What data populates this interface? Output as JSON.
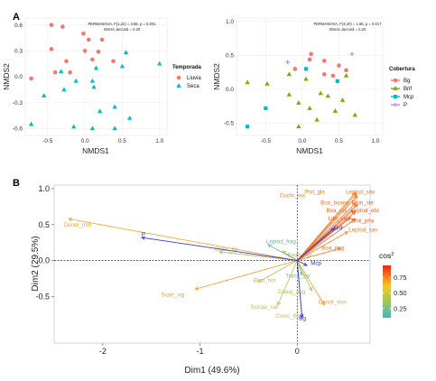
{
  "panel_labels": [
    "A",
    "B"
  ],
  "chart_data": [
    {
      "type": "scatter",
      "panel": "A",
      "xlabel": "NMDS1",
      "ylabel": "NMDS2",
      "xlim": [
        -0.8,
        1.1
      ],
      "ylim": [
        -0.68,
        0.68
      ],
      "xticks": [
        -0.5,
        0.0,
        0.5,
        1.0
      ],
      "xtick_labels": [
        "-0.5",
        "0.0",
        "0.5",
        "1.0"
      ],
      "yticks": [
        -0.6,
        -0.3,
        0.0,
        0.3,
        0.6
      ],
      "ytick_labels": [
        "-0.6",
        "-0.3",
        "0.0",
        "0.3",
        "0.6"
      ],
      "annotation_lines": [
        "PERMANOVA, F(1,22) = 3.59, p = 0.001",
        "Stress Jaccard = 0.20"
      ],
      "legend": {
        "title": "Temporada",
        "placement": "right"
      },
      "series": [
        {
          "name": "Lluvia",
          "color": "#f8766d",
          "marker": "circle",
          "points": [
            [
              -0.45,
              0.6
            ],
            [
              -0.3,
              0.58
            ],
            [
              -0.02,
              0.5
            ],
            [
              0.05,
              0.43
            ],
            [
              0.23,
              0.43
            ],
            [
              -0.45,
              0.32
            ],
            [
              0.0,
              0.3
            ],
            [
              0.18,
              0.29
            ],
            [
              0.1,
              0.2
            ],
            [
              -0.25,
              0.18
            ],
            [
              0.38,
              0.18
            ],
            [
              -0.4,
              0.05
            ],
            [
              -0.2,
              0.05
            ],
            [
              -0.72,
              -0.02
            ]
          ]
        },
        {
          "name": "Seca",
          "color": "#00bfc4",
          "marker": "triangle",
          "points": [
            [
              0.55,
              0.28
            ],
            [
              1.0,
              0.15
            ],
            [
              0.5,
              0.12
            ],
            [
              0.15,
              0.1
            ],
            [
              -0.32,
              0.06
            ],
            [
              -0.12,
              -0.05
            ],
            [
              0.1,
              -0.05
            ],
            [
              -0.28,
              -0.15
            ],
            [
              0.12,
              -0.12
            ],
            [
              -0.55,
              -0.22
            ],
            [
              0.4,
              -0.35
            ],
            [
              0.2,
              -0.4
            ],
            [
              0.6,
              -0.48
            ],
            [
              -0.72,
              -0.55
            ],
            [
              -0.15,
              -0.58
            ],
            [
              0.1,
              -0.6
            ],
            [
              0.4,
              -0.6
            ]
          ]
        }
      ]
    },
    {
      "type": "scatter",
      "panel": "A",
      "xlabel": "NMDS1",
      "ylabel": "NMDS2",
      "xlim": [
        -0.9,
        1.1
      ],
      "ylim": [
        -0.68,
        1.05
      ],
      "xticks": [
        -0.5,
        0.0,
        0.5,
        1.0
      ],
      "xtick_labels": [
        "-0.5",
        "0.0",
        "0.5",
        "1.0"
      ],
      "yticks": [
        -0.5,
        0.0,
        0.5,
        1.0
      ],
      "ytick_labels": [
        "-0.5",
        "0.0",
        "0.5",
        "1.0"
      ],
      "annotation_lines": [
        "PERMANOVA, F(3,20) = 1.66, p = 0.017",
        "Stress Jaccard = 0.20"
      ],
      "legend": {
        "title": "Cobertura",
        "placement": "right"
      },
      "series": [
        {
          "name": "Bg",
          "color": "#f8766d",
          "marker": "circle",
          "points": [
            [
              0.12,
              0.52
            ],
            [
              0.1,
              0.44
            ],
            [
              0.3,
              0.42
            ],
            [
              0.5,
              0.35
            ],
            [
              -0.1,
              0.3
            ],
            [
              0.6,
              0.28
            ],
            [
              0.3,
              0.22
            ],
            [
              0.42,
              0.2
            ]
          ]
        },
        {
          "name": "Brif",
          "color": "#7cae00",
          "marker": "triangle",
          "points": [
            [
              -0.75,
              0.1
            ],
            [
              -0.48,
              0.08
            ],
            [
              0.05,
              0.15
            ],
            [
              -0.18,
              0.22
            ],
            [
              0.6,
              0.2
            ],
            [
              0.25,
              -0.06
            ],
            [
              -0.18,
              -0.08
            ],
            [
              0.35,
              -0.1
            ],
            [
              0.55,
              -0.16
            ],
            [
              -0.05,
              -0.2
            ],
            [
              0.1,
              -0.28
            ],
            [
              0.45,
              -0.32
            ],
            [
              0.72,
              -0.38
            ],
            [
              0.2,
              -0.45
            ],
            [
              -0.05,
              -0.55
            ]
          ]
        },
        {
          "name": "Mcp",
          "color": "#00bfc4",
          "marker": "square",
          "points": [
            [
              0.05,
              0.3
            ],
            [
              0.48,
              0.12
            ],
            [
              -0.5,
              -0.28
            ],
            [
              -0.75,
              -0.55
            ]
          ]
        },
        {
          "name": "P",
          "color": "#c77cff",
          "marker": "cross",
          "points": [
            [
              -0.2,
              0.4
            ],
            [
              0.68,
              0.52
            ]
          ]
        }
      ]
    },
    {
      "type": "scatter",
      "subtype": "pca_biplot",
      "panel": "B",
      "xlabel": "Dim1 (49.6%)",
      "ylabel": "Dim2 (29.5%)",
      "xlim": [
        -2.5,
        0.75
      ],
      "ylim": [
        -1.15,
        1.05
      ],
      "xticks": [
        -2,
        -1,
        0
      ],
      "xtick_labels": [
        "-2",
        "-1",
        "0"
      ],
      "yticks": [
        -0.5,
        0.0,
        0.5,
        1.0
      ],
      "ytick_labels": [
        "-0.5",
        "0.0",
        "0.5",
        "1.0"
      ],
      "legend": {
        "title": "cos",
        "title_superscript": "2",
        "placement": "right",
        "ticks": [
          0.75,
          0.5,
          0.25
        ],
        "tick_labels": [
          "0.75",
          "0.50",
          "0.25"
        ],
        "range": [
          0.1,
          0.95
        ]
      },
      "variables": [
        {
          "name": "Cochr_ros",
          "x": 0.6,
          "y": 0.95,
          "cos2": 0.78,
          "label_xy": [
            -0.18,
            0.88
          ]
        },
        {
          "name": "Psit_gla",
          "x": 0.61,
          "y": 0.93,
          "cos2": 0.8,
          "label_xy": [
            0.08,
            0.93
          ]
        },
        {
          "name": "Leptod_sav",
          "x": 0.62,
          "y": 0.9,
          "cos2": 0.81,
          "label_xy": [
            0.5,
            0.93
          ]
        },
        {
          "name": "Boa_boans",
          "x": 0.6,
          "y": 0.8,
          "cos2": 0.82,
          "label_xy": [
            0.24,
            0.78
          ]
        },
        {
          "name": "Rhin_ste",
          "x": 0.62,
          "y": 0.78,
          "cos2": 0.84,
          "label_xy": [
            0.56,
            0.78
          ]
        },
        {
          "name": "Boa_ros",
          "x": 0.58,
          "y": 0.7,
          "cos2": 0.83,
          "label_xy": [
            0.3,
            0.67
          ]
        },
        {
          "name": "Leptod_ebr",
          "x": 0.6,
          "y": 0.68,
          "cos2": 0.85,
          "label_xy": [
            0.55,
            0.67
          ]
        },
        {
          "name": "Lith_vai",
          "x": 0.55,
          "y": 0.6,
          "cos2": 0.86,
          "label_xy": [
            0.32,
            0.56
          ]
        },
        {
          "name": "Smil_pha",
          "x": 0.6,
          "y": 0.58,
          "cos2": 0.85,
          "label_xy": [
            0.55,
            0.53
          ]
        },
        {
          "name": "Leptod_sav",
          "x": 0.52,
          "y": 0.4,
          "cos2": 0.8,
          "label_xy": [
            0.53,
            0.4
          ]
        },
        {
          "name": "Boa_pug",
          "x": 0.45,
          "y": 0.17,
          "cos2": 0.82,
          "label_xy": [
            0.25,
            0.15
          ]
        },
        {
          "name": "Dendr_min",
          "x": -2.35,
          "y": 0.58,
          "cos2": 0.7,
          "label_xy": [
            -2.4,
            0.47
          ]
        },
        {
          "name": "Scart_vig",
          "x": -1.05,
          "y": -0.4,
          "cos2": 0.72,
          "label_xy": [
            -1.4,
            -0.5
          ]
        },
        {
          "name": "Dendr_trun",
          "x": 0.28,
          "y": -0.62,
          "cos2": 0.72,
          "label_xy": [
            0.22,
            -0.6
          ]
        },
        {
          "name": "Leptod_frag",
          "x": -0.3,
          "y": 0.22,
          "cos2": 0.2,
          "label_xy": [
            -0.32,
            0.24
          ]
        },
        {
          "name": "Coloc_lip",
          "x": -0.8,
          "y": 0.12,
          "cos2": 0.46,
          "label_xy": [
            -0.85,
            0.13
          ]
        },
        {
          "name": "Eryth_hos",
          "x": -0.15,
          "y": 0.13,
          "cos2": 0.4,
          "label_xy": [
            -0.1,
            0.05
          ]
        },
        {
          "name": "Blen_hor",
          "x": -0.4,
          "y": -0.3,
          "cos2": 0.5,
          "label_xy": [
            -0.45,
            -0.3
          ]
        },
        {
          "name": "Trach_typ",
          "x": 0.05,
          "y": -0.2,
          "cos2": 0.28,
          "label_xy": [
            -0.12,
            -0.24
          ]
        },
        {
          "name": "Craug_aug",
          "x": 0.15,
          "y": -0.42,
          "cos2": 0.5,
          "label_xy": [
            -0.2,
            -0.46
          ]
        },
        {
          "name": "Scinax_rub",
          "x": -0.2,
          "y": -0.62,
          "cos2": 0.5,
          "label_xy": [
            -0.48,
            -0.67
          ]
        },
        {
          "name": "Coloc_Bg",
          "x": 0.05,
          "y": -0.78,
          "cos2": 0.55,
          "label_xy": [
            -0.22,
            -0.8
          ]
        }
      ],
      "supplementary": [
        {
          "name": "P",
          "x": -1.6,
          "y": 0.32,
          "label_xy": [
            -1.6,
            0.34
          ]
        },
        {
          "name": "Brif",
          "x": 0.38,
          "y": 0.45,
          "label_xy": [
            0.38,
            0.43
          ]
        },
        {
          "name": "Mcp",
          "x": 0.1,
          "y": -0.07,
          "label_xy": [
            0.14,
            -0.06
          ]
        },
        {
          "name": "Bg",
          "x": 0.05,
          "y": -0.8,
          "label_xy": [
            0.02,
            -0.83
          ]
        }
      ]
    }
  ]
}
